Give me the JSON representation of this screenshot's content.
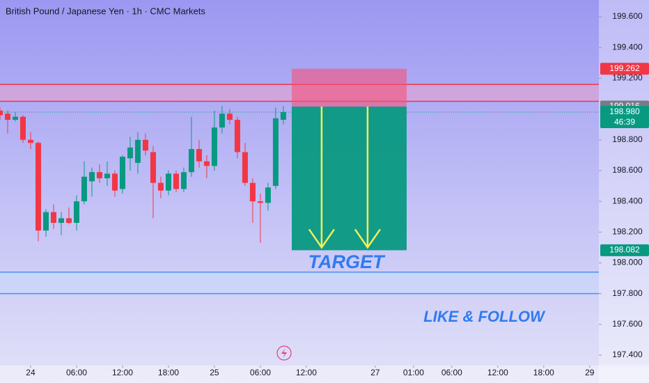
{
  "chart_data": {
    "type": "candlestick",
    "title": "British Pound / Japanese Yen · 1h · CMC Markets",
    "x": [
      -4,
      -3,
      -2,
      -1,
      0,
      1,
      2,
      3,
      4,
      5,
      6,
      7,
      8,
      9,
      10,
      11,
      12,
      13,
      14,
      15,
      16,
      17,
      18,
      19,
      20,
      21,
      22,
      23,
      24,
      25,
      26,
      27,
      28,
      29,
      30,
      31,
      32,
      33
    ],
    "open": [
      198.99,
      198.97,
      198.93,
      198.95,
      198.8,
      198.78,
      198.21,
      198.33,
      198.26,
      198.29,
      198.26,
      198.4,
      198.53,
      198.59,
      198.55,
      198.58,
      198.48,
      198.68,
      198.65,
      198.8,
      198.72,
      198.52,
      198.47,
      198.58,
      198.48,
      198.59,
      198.74,
      198.66,
      198.63,
      198.88,
      198.97,
      198.93,
      198.72,
      198.52,
      198.4,
      198.39,
      198.5,
      198.93
    ],
    "high": [
      199.01,
      198.99,
      198.98,
      198.96,
      198.85,
      198.79,
      198.35,
      198.38,
      198.33,
      198.36,
      198.44,
      198.66,
      198.62,
      198.64,
      198.66,
      198.6,
      198.7,
      198.82,
      198.85,
      198.84,
      198.76,
      198.56,
      198.6,
      198.6,
      198.62,
      198.95,
      198.8,
      198.7,
      198.99,
      199.02,
      199.0,
      198.95,
      198.78,
      198.55,
      198.45,
      198.52,
      199.01,
      199.02
    ],
    "low": [
      198.93,
      198.84,
      198.92,
      198.78,
      198.74,
      198.14,
      198.17,
      198.22,
      198.18,
      198.25,
      198.21,
      198.38,
      198.43,
      198.52,
      198.5,
      198.43,
      198.45,
      198.6,
      198.58,
      198.7,
      198.29,
      198.42,
      198.44,
      198.46,
      198.46,
      198.56,
      198.62,
      198.55,
      198.6,
      198.84,
      198.9,
      198.68,
      198.5,
      198.26,
      198.13,
      198.34,
      198.48,
      198.9
    ],
    "close": [
      198.96,
      198.93,
      198.95,
      198.8,
      198.78,
      198.21,
      198.33,
      198.26,
      198.29,
      198.26,
      198.4,
      198.56,
      198.59,
      198.55,
      198.58,
      198.47,
      198.69,
      198.75,
      198.8,
      198.73,
      198.52,
      198.47,
      198.58,
      198.48,
      198.59,
      198.74,
      198.66,
      198.63,
      198.88,
      198.97,
      198.93,
      198.72,
      198.52,
      198.4,
      198.39,
      198.49,
      198.94,
      198.98
    ],
    "up_color": "#089981",
    "down_color": "#f23645",
    "xlim": [
      -4,
      74.2
    ],
    "ylim": [
      197.332,
      199.709
    ],
    "xticks": [
      {
        "value": 0,
        "label": "24"
      },
      {
        "value": 6,
        "label": "06:00"
      },
      {
        "value": 12,
        "label": "12:00"
      },
      {
        "value": 18,
        "label": "18:00"
      },
      {
        "value": 24,
        "label": "25"
      },
      {
        "value": 30,
        "label": "06:00"
      },
      {
        "value": 36,
        "label": "12:00"
      },
      {
        "value": 45,
        "label": "27"
      },
      {
        "value": 50,
        "label": "01:00"
      },
      {
        "value": 55,
        "label": "06:00"
      },
      {
        "value": 61,
        "label": "12:00"
      },
      {
        "value": 67,
        "label": "18:00"
      },
      {
        "value": 73,
        "label": "29"
      }
    ],
    "yticks": [
      {
        "value": 199.6,
        "label": "199.600"
      },
      {
        "value": 199.4,
        "label": "199.400"
      },
      {
        "value": 199.2,
        "label": "199.200"
      },
      {
        "value": 198.8,
        "label": "198.800"
      },
      {
        "value": 198.6,
        "label": "198.600"
      },
      {
        "value": 198.4,
        "label": "198.400"
      },
      {
        "value": 198.2,
        "label": "198.200"
      },
      {
        "value": 198.0,
        "label": "198.000"
      },
      {
        "value": 197.8,
        "label": "197.800"
      },
      {
        "value": 197.6,
        "label": "197.600"
      },
      {
        "value": 197.4,
        "label": "197.400"
      }
    ],
    "resistance_zone": [
      199.05,
      199.16
    ],
    "support_zone": [
      197.8,
      197.94
    ],
    "position": {
      "start": 34.1,
      "end": 49.1,
      "stop": 199.262,
      "entry": 199.016,
      "target": 198.082
    },
    "price_labels": [
      {
        "value": 199.262,
        "label": "199.262",
        "color": "#f23645"
      },
      {
        "value": 199.016,
        "label": "199.016",
        "color": "#787b86"
      },
      {
        "value": 198.98,
        "label": "198.980",
        "color": "#089981"
      },
      {
        "value": 198.082,
        "label": "198.082",
        "color": "#089981"
      }
    ],
    "countdown": "46:39",
    "annotations": [
      "TARGET",
      "LIKE & FOLLOW"
    ]
  }
}
